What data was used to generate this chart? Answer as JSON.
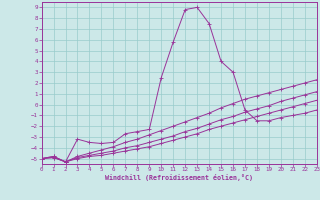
{
  "xlabel": "Windchill (Refroidissement éolien,°C)",
  "background_color": "#cce8e8",
  "grid_color": "#99cccc",
  "line_color": "#993399",
  "spine_color": "#993399",
  "xmin": 0,
  "xmax": 23,
  "ymin": -5.5,
  "ymax": 9.5,
  "yticks": [
    -5,
    -4,
    -3,
    -2,
    -1,
    0,
    1,
    2,
    3,
    4,
    5,
    6,
    7,
    8,
    9
  ],
  "xticks": [
    0,
    1,
    2,
    3,
    4,
    5,
    6,
    7,
    8,
    9,
    10,
    11,
    12,
    13,
    14,
    15,
    16,
    17,
    18,
    19,
    20,
    21,
    22,
    23
  ],
  "series": [
    {
      "x": [
        0,
        1,
        2,
        3,
        4,
        5,
        6,
        7,
        8,
        9,
        10,
        11,
        12,
        13,
        14,
        15,
        16,
        17,
        18,
        19,
        20,
        21,
        22,
        23
      ],
      "y": [
        -5.0,
        -4.8,
        -5.3,
        -3.2,
        -3.5,
        -3.6,
        -3.5,
        -2.7,
        -2.5,
        -2.3,
        2.5,
        5.8,
        8.8,
        9.0,
        7.5,
        4.0,
        3.0,
        -0.5,
        -1.5,
        -1.5,
        -1.2,
        -1.0,
        -0.8,
        -0.5
      ]
    },
    {
      "x": [
        0,
        1,
        2,
        3,
        4,
        5,
        6,
        7,
        8,
        9,
        10,
        11,
        12,
        13,
        14,
        15,
        16,
        17,
        18,
        19,
        20,
        21,
        22,
        23
      ],
      "y": [
        -5.0,
        -4.9,
        -5.3,
        -5.0,
        -4.8,
        -4.7,
        -4.5,
        -4.3,
        -4.1,
        -3.9,
        -3.6,
        -3.3,
        -3.0,
        -2.7,
        -2.3,
        -2.0,
        -1.7,
        -1.4,
        -1.1,
        -0.8,
        -0.5,
        -0.2,
        0.1,
        0.4
      ]
    },
    {
      "x": [
        0,
        1,
        2,
        3,
        4,
        5,
        6,
        7,
        8,
        9,
        10,
        11,
        12,
        13,
        14,
        15,
        16,
        17,
        18,
        19,
        20,
        21,
        22,
        23
      ],
      "y": [
        -5.0,
        -4.9,
        -5.3,
        -4.9,
        -4.7,
        -4.5,
        -4.3,
        -4.0,
        -3.8,
        -3.5,
        -3.2,
        -2.9,
        -2.5,
        -2.2,
        -1.8,
        -1.4,
        -1.1,
        -0.7,
        -0.4,
        -0.1,
        0.3,
        0.6,
        0.9,
        1.2
      ]
    },
    {
      "x": [
        0,
        1,
        2,
        3,
        4,
        5,
        6,
        7,
        8,
        9,
        10,
        11,
        12,
        13,
        14,
        15,
        16,
        17,
        18,
        19,
        20,
        21,
        22,
        23
      ],
      "y": [
        -5.0,
        -4.8,
        -5.3,
        -4.8,
        -4.5,
        -4.2,
        -3.9,
        -3.5,
        -3.2,
        -2.8,
        -2.4,
        -2.0,
        -1.6,
        -1.2,
        -0.8,
        -0.3,
        0.1,
        0.5,
        0.8,
        1.1,
        1.4,
        1.7,
        2.0,
        2.3
      ]
    }
  ]
}
